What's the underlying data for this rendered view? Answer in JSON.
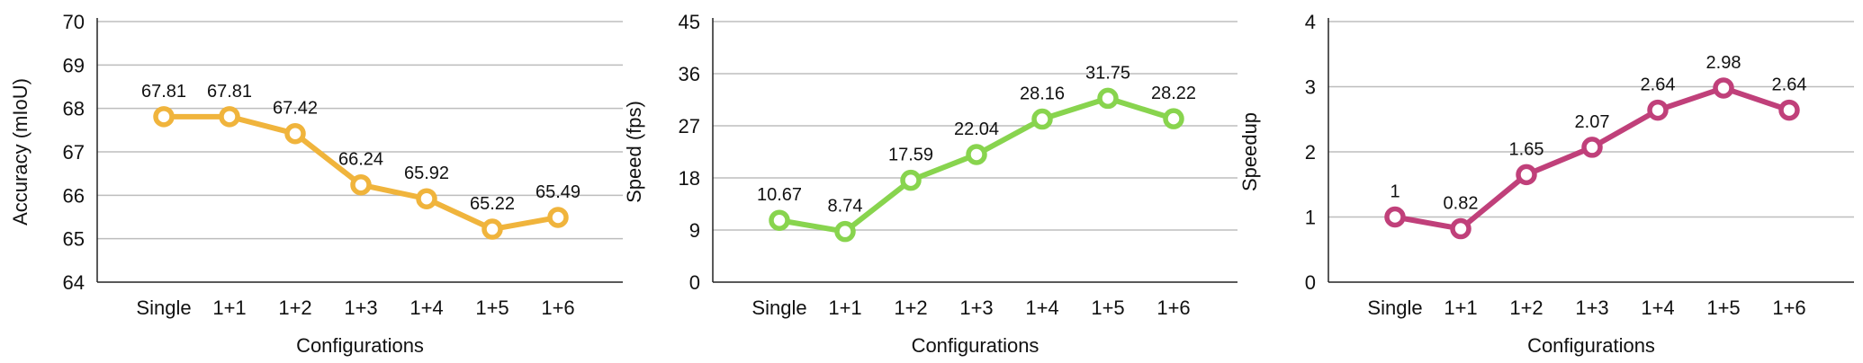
{
  "chart_data": [
    {
      "type": "line",
      "categories": [
        "Single",
        "1+1",
        "1+2",
        "1+3",
        "1+4",
        "1+5",
        "1+6"
      ],
      "values": [
        67.81,
        67.81,
        67.42,
        66.24,
        65.92,
        65.22,
        65.49
      ],
      "data_labels": [
        "67.81",
        "67.81",
        "67.42",
        "66.24",
        "65.92",
        "65.22",
        "65.49"
      ],
      "xlabel": "Configurations",
      "ylabel": "Accuracy (mIoU)",
      "ylim": [
        64,
        70
      ],
      "yticks": [
        64,
        65,
        66,
        67,
        68,
        69,
        70
      ],
      "ytick_labels": [
        "64",
        "65",
        "66",
        "67",
        "68",
        "69",
        "70"
      ],
      "grid": true,
      "color": "#F0B43C"
    },
    {
      "type": "line",
      "categories": [
        "Single",
        "1+1",
        "1+2",
        "1+3",
        "1+4",
        "1+5",
        "1+6"
      ],
      "values": [
        10.67,
        8.74,
        17.59,
        22.04,
        28.16,
        31.75,
        28.22
      ],
      "data_labels": [
        "10.67",
        "8.74",
        "17.59",
        "22.04",
        "28.16",
        "31.75",
        "28.22"
      ],
      "xlabel": "Configurations",
      "ylabel": "Speed (fps)",
      "ylim": [
        0,
        45
      ],
      "yticks": [
        0,
        9,
        18,
        27,
        36,
        45
      ],
      "ytick_labels": [
        "0",
        "9",
        "18",
        "27",
        "36",
        "45"
      ],
      "grid": true,
      "color": "#88D44E"
    },
    {
      "type": "line",
      "categories": [
        "Single",
        "1+1",
        "1+2",
        "1+3",
        "1+4",
        "1+5",
        "1+6"
      ],
      "values": [
        1,
        0.82,
        1.65,
        2.07,
        2.64,
        2.98,
        2.64
      ],
      "data_labels": [
        "1",
        "0.82",
        "1.65",
        "2.07",
        "2.64",
        "2.98",
        "2.64"
      ],
      "xlabel": "Configurations",
      "ylabel": "Speedup",
      "ylim": [
        0,
        4
      ],
      "yticks": [
        0,
        1,
        2,
        3,
        4
      ],
      "ytick_labels": [
        "0",
        "1",
        "2",
        "3",
        "4"
      ],
      "grid": true,
      "color": "#C0407A"
    }
  ]
}
